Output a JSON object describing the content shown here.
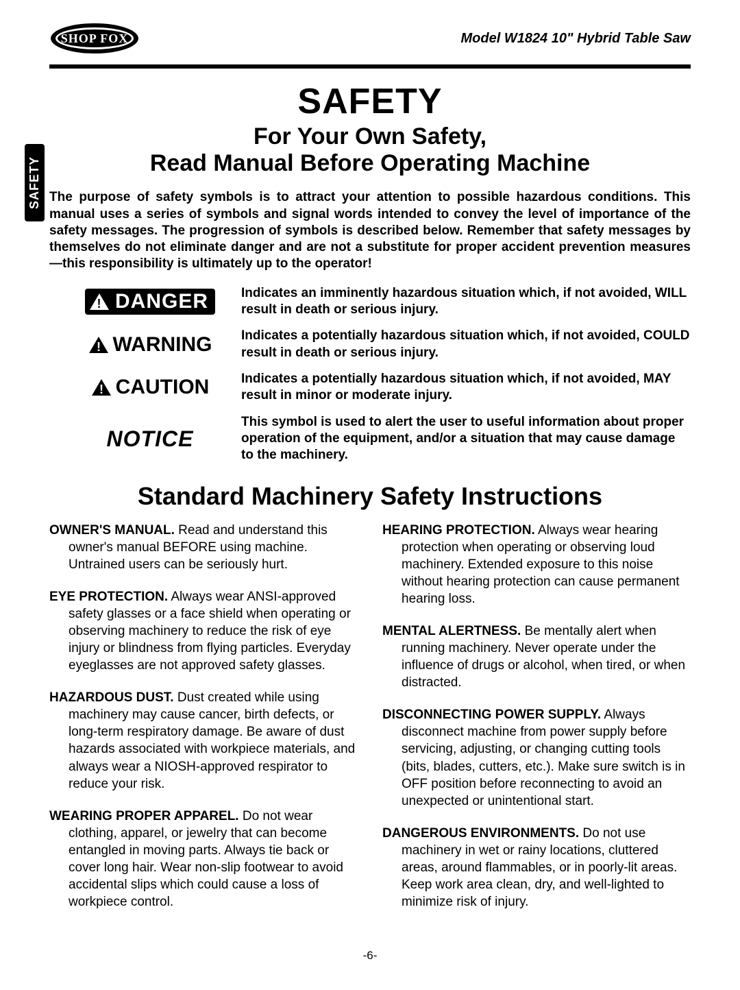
{
  "header": {
    "logo_text": "SHOP FOX",
    "model_line": "Model W1824 10\" Hybrid Table Saw"
  },
  "side_tab": "SAFETY",
  "titles": {
    "main": "SAFETY",
    "sub_line1": "For Your Own Safety,",
    "sub_line2": "Read Manual Before Operating Machine"
  },
  "intro": "The purpose of safety symbols is to attract your attention to possible hazardous conditions. This manual uses a series of symbols and signal words intended to convey the level of importance of the safety messages. The progression of symbols is described below. Remember that safety messages by themselves do not eliminate danger and are not a substitute for proper accident prevention measures—this responsibility is ultimately up to the operator!",
  "signals": {
    "danger": {
      "word": "DANGER",
      "desc": "Indicates an imminently hazardous situation which, if not avoided, WILL result in death or serious injury."
    },
    "warning": {
      "word": "WARNING",
      "desc": "Indicates a potentially hazardous situation which, if not avoided, COULD result in death or serious injury."
    },
    "caution": {
      "word": "CAUTION",
      "desc": "Indicates a potentially hazardous situation which, if not avoided, MAY result in minor or moderate injury."
    },
    "notice": {
      "word": "NOTICE",
      "desc": "This symbol is used to alert the user to useful information about proper operation of the equipment, and/or a situation that may cause damage to the machinery."
    }
  },
  "instructions_title": "Standard Machinery Safety Instructions",
  "left_items": [
    {
      "head": "OWNER'S MANUAL.",
      "body": " Read and understand this owner's manual BEFORE using machine. Untrained users can be seriously hurt."
    },
    {
      "head": "EYE PROTECTION.",
      "body": " Always wear ANSI-approved safety glasses or a face shield when operating or observing machinery to reduce the risk of eye injury or blindness from flying particles. Everyday eyeglasses are not approved safety glasses."
    },
    {
      "head": "HAZARDOUS DUST.",
      "body": " Dust created while using machinery may cause cancer, birth defects, or long-term respiratory damage. Be aware of dust hazards associated with workpiece materials, and always wear a NIOSH-approved respirator to reduce your risk."
    },
    {
      "head": "WEARING PROPER APPAREL.",
      "body": " Do not wear clothing, apparel, or jewelry that can become entangled in moving parts. Always tie back or cover long hair. Wear non-slip footwear to avoid accidental slips which could cause a loss of workpiece control."
    }
  ],
  "right_items": [
    {
      "head": "HEARING PROTECTION.",
      "body": " Always wear hearing protection when operating or observing loud machinery. Extended exposure to this noise without hearing protection can cause permanent hearing loss."
    },
    {
      "head": "MENTAL ALERTNESS.",
      "body": " Be mentally alert when running machinery. Never operate under the influence of drugs or alcohol, when tired, or when distracted."
    },
    {
      "head": "DISCONNECTING POWER SUPPLY.",
      "body": " Always disconnect machine from power supply before servicing, adjusting, or changing cutting tools (bits, blades, cutters, etc.). Make sure switch is in OFF position before reconnecting to avoid an unexpected or unintentional start."
    },
    {
      "head": "DANGEROUS ENVIRONMENTS.",
      "body": " Do not use machinery in wet or rainy locations, cluttered areas, around flammables, or in poorly-lit areas. Keep work area clean, dry, and well-lighted to minimize risk of injury."
    }
  ],
  "page_number": "-6-"
}
